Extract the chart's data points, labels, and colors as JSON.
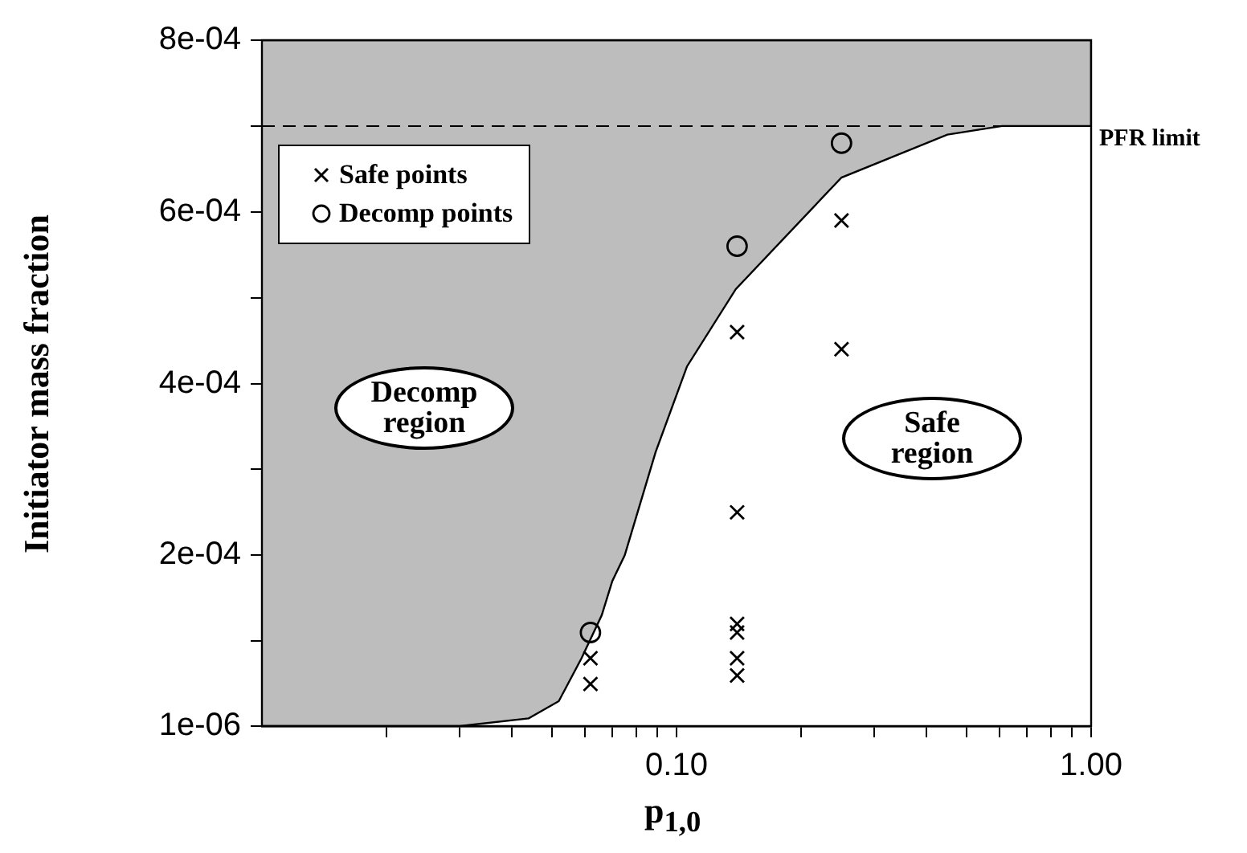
{
  "chart_data": {
    "type": "scatter",
    "xlabel": "p$_{1,0}$",
    "ylabel": "Initiator mass fraction",
    "log": "x",
    "xlim": [
      0.01,
      1
    ],
    "xticks": [
      {
        "value": 0.02,
        "label": null
      },
      {
        "value": 0.03,
        "label": null
      },
      {
        "value": 0.04,
        "label": null
      },
      {
        "value": 0.05,
        "label": null
      },
      {
        "value": 0.06,
        "label": null
      },
      {
        "value": 0.07,
        "label": null
      },
      {
        "value": 0.08,
        "label": null
      },
      {
        "value": 0.09,
        "label": null
      },
      {
        "value": 0.1,
        "label": "0.10"
      },
      {
        "value": 0.2,
        "label": null
      },
      {
        "value": 0.3,
        "label": null
      },
      {
        "value": 0.4,
        "label": null
      },
      {
        "value": 0.5,
        "label": null
      },
      {
        "value": 0.6,
        "label": null
      },
      {
        "value": 0.7,
        "label": null
      },
      {
        "value": 0.8,
        "label": null
      },
      {
        "value": 0.9,
        "label": null
      },
      {
        "value": 1,
        "label": "1.00"
      }
    ],
    "ylim": [
      1e-06,
      0.0008
    ],
    "yticks": [
      {
        "value": 1e-06,
        "label": "1e-06"
      },
      {
        "value": 0.0001,
        "label": null
      },
      {
        "value": 0.0002,
        "label": "2e-04"
      },
      {
        "value": 0.0003,
        "label": null
      },
      {
        "value": 0.0004,
        "label": "4e-04"
      },
      {
        "value": 0.0005,
        "label": null
      },
      {
        "value": 0.0006,
        "label": "6e-04"
      },
      {
        "value": 0.0007,
        "label": null
      },
      {
        "value": 0.0008,
        "label": "8e-04"
      }
    ],
    "grid": false,
    "legend": "top left",
    "series": [
      {
        "type": "area",
        "color": "#bdbdbd",
        "x": [
          0.01,
          0.03,
          0.044,
          0.052,
          0.059,
          0.066,
          0.07,
          0.075,
          0.089,
          0.106,
          0.139,
          0.25,
          0.45,
          0.61,
          1,
          1,
          0.01
        ],
        "values": [
          1e-06,
          1e-06,
          1e-05,
          3e-05,
          8e-05,
          0.00013,
          0.00017,
          0.0002,
          0.00032,
          0.00042,
          0.00051,
          0.00064,
          0.00069,
          0.0007,
          0.0007,
          0.0008,
          0.0008
        ]
      },
      {
        "name": "Safe points",
        "marker": "cross",
        "color": "#000000",
        "x": [
          0.062,
          0.062,
          0.14,
          0.14,
          0.14,
          0.14,
          0.14,
          0.14,
          0.25,
          0.25
        ],
        "values": [
          8e-05,
          5e-05,
          0.00012,
          0.00011,
          8e-05,
          6e-05,
          0.00046,
          0.00025,
          0.00059,
          0.00044
        ]
      },
      {
        "name": "Decomp points",
        "marker": "circle",
        "color": "#000000",
        "x": [
          0.062,
          0.14,
          0.25
        ],
        "values": [
          0.00011,
          0.00056,
          0.00068
        ]
      }
    ],
    "ref_lines": [
      {
        "axis": "y",
        "value": 0.0007,
        "label": "PFR limit",
        "line_style": "dashed"
      }
    ],
    "annotations": [
      "Decomp region",
      "Safe region"
    ]
  }
}
